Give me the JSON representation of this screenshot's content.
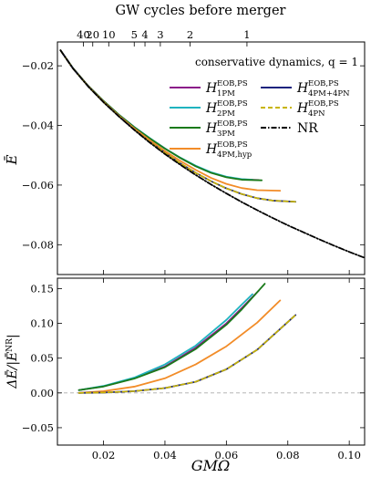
{
  "chart_data": [
    {
      "type": "line",
      "panel": "top",
      "top_axis_label": "GW cycles before merger",
      "top_ticks": [
        {
          "label": "40",
          "x": 0.01345
        },
        {
          "label": "20",
          "x": 0.0165
        },
        {
          "label": "10",
          "x": 0.0217
        },
        {
          "label": "5",
          "x": 0.03
        },
        {
          "label": "4",
          "x": 0.0335
        },
        {
          "label": "3",
          "x": 0.0385
        },
        {
          "label": "2",
          "x": 0.0482
        },
        {
          "label": "1",
          "x": 0.0667
        }
      ],
      "ylabel": "Ē",
      "xlim": [
        0.005,
        0.105
      ],
      "ylim": [
        -0.09,
        -0.012
      ],
      "yticks": [
        -0.02,
        -0.04,
        -0.06,
        -0.08
      ],
      "ytick_labels": [
        "−0.02",
        "−0.04",
        "−0.06",
        "−0.08"
      ],
      "legend_title": "conservative dynamics,  q = 1",
      "legend_position": "upper right",
      "series": [
        {
          "name": "H 1PM EOB,PS",
          "color": "#8b1a89",
          "style": "solid",
          "x": [
            0.006,
            0.01,
            0.015,
            0.02,
            0.025,
            0.03,
            0.035,
            0.04,
            0.045,
            0.05,
            0.055,
            0.06,
            0.065,
            0.0705
          ],
          "y": [
            -0.0148,
            -0.0207,
            -0.0267,
            -0.0318,
            -0.0364,
            -0.0405,
            -0.0443,
            -0.0477,
            -0.0509,
            -0.0536,
            -0.0558,
            -0.0573,
            -0.0581,
            -0.0583
          ]
        },
        {
          "name": "H 2PM EOB,PS",
          "color": "#1fb3bf",
          "style": "solid",
          "x": [
            0.006,
            0.01,
            0.015,
            0.02,
            0.025,
            0.03,
            0.035,
            0.04,
            0.045,
            0.05,
            0.055,
            0.06,
            0.065,
            0.0685
          ],
          "y": [
            -0.0148,
            -0.0207,
            -0.0267,
            -0.0318,
            -0.0364,
            -0.0405,
            -0.0442,
            -0.0477,
            -0.0508,
            -0.0535,
            -0.0557,
            -0.0572,
            -0.058,
            -0.0582
          ]
        },
        {
          "name": "H 3PM EOB,PS",
          "color": "#1a7a1a",
          "style": "solid",
          "x": [
            0.006,
            0.01,
            0.015,
            0.02,
            0.025,
            0.03,
            0.035,
            0.04,
            0.045,
            0.05,
            0.055,
            0.06,
            0.065,
            0.0715
          ],
          "y": [
            -0.0148,
            -0.0207,
            -0.0267,
            -0.0318,
            -0.0364,
            -0.0406,
            -0.0443,
            -0.0478,
            -0.0509,
            -0.0537,
            -0.0559,
            -0.0574,
            -0.0582,
            -0.0584
          ]
        },
        {
          "name": "H 4PM,hyp EOB,PS",
          "color": "#f28c28",
          "style": "solid",
          "x": [
            0.006,
            0.01,
            0.015,
            0.02,
            0.025,
            0.03,
            0.035,
            0.04,
            0.045,
            0.05,
            0.055,
            0.06,
            0.065,
            0.07,
            0.0775
          ],
          "y": [
            -0.0148,
            -0.0208,
            -0.0268,
            -0.032,
            -0.0367,
            -0.041,
            -0.0449,
            -0.0486,
            -0.0519,
            -0.0549,
            -0.0576,
            -0.0596,
            -0.061,
            -0.0617,
            -0.0619
          ]
        },
        {
          "name": "H 4PM+4PN EOB,PS",
          "color": "#1a237e",
          "style": "solid",
          "x": [
            0.006,
            0.01,
            0.015,
            0.02,
            0.025,
            0.03,
            0.035,
            0.04,
            0.045,
            0.05,
            0.055,
            0.06,
            0.065,
            0.07,
            0.075,
            0.0825
          ],
          "y": [
            -0.0148,
            -0.0208,
            -0.0269,
            -0.0322,
            -0.0369,
            -0.0414,
            -0.0455,
            -0.0492,
            -0.0527,
            -0.0559,
            -0.0587,
            -0.0611,
            -0.063,
            -0.0644,
            -0.0652,
            -0.0656
          ]
        },
        {
          "name": "H 4PN EOB,PS",
          "color": "#c8b400",
          "style": "dashed",
          "x": [
            0.006,
            0.01,
            0.015,
            0.02,
            0.025,
            0.03,
            0.035,
            0.04,
            0.045,
            0.05,
            0.055,
            0.06,
            0.065,
            0.07,
            0.075,
            0.0825
          ],
          "y": [
            -0.0148,
            -0.0208,
            -0.0269,
            -0.0322,
            -0.0369,
            -0.0414,
            -0.0455,
            -0.0492,
            -0.0527,
            -0.0559,
            -0.0587,
            -0.0611,
            -0.063,
            -0.0644,
            -0.0652,
            -0.0656
          ]
        },
        {
          "name": "NR",
          "color": "#000000",
          "style": "dashdot",
          "x": [
            0.006,
            0.01,
            0.015,
            0.02,
            0.025,
            0.03,
            0.035,
            0.04,
            0.045,
            0.05,
            0.055,
            0.06,
            0.065,
            0.07,
            0.075,
            0.08,
            0.085,
            0.09,
            0.095,
            0.1,
            0.105
          ],
          "y": [
            -0.0148,
            -0.0208,
            -0.0269,
            -0.0322,
            -0.037,
            -0.0415,
            -0.0457,
            -0.0496,
            -0.0532,
            -0.0566,
            -0.0598,
            -0.0628,
            -0.0657,
            -0.0684,
            -0.071,
            -0.0735,
            -0.0758,
            -0.0781,
            -0.0803,
            -0.0824,
            -0.0844
          ]
        }
      ]
    },
    {
      "type": "line",
      "panel": "bottom",
      "xlabel": "GMΩ",
      "ylabel": "ΔĒ/|Ē^NR|",
      "xlim": [
        0.005,
        0.105
      ],
      "ylim": [
        -0.075,
        0.165
      ],
      "xticks": [
        0.02,
        0.04,
        0.06,
        0.08,
        0.1
      ],
      "xtick_labels": [
        "0.02",
        "0.04",
        "0.06",
        "0.08",
        "0.10"
      ],
      "yticks": [
        -0.05,
        0.0,
        0.05,
        0.1,
        0.15
      ],
      "ytick_labels": [
        "−0.05",
        "0.00",
        "0.05",
        "0.10",
        "0.15"
      ],
      "zero_line": true,
      "series": [
        {
          "name": "H 1PM EOB,PS",
          "color": "#8b1a89",
          "style": "solid",
          "x": [
            0.012,
            0.02,
            0.03,
            0.04,
            0.05,
            0.06,
            0.065,
            0.0705
          ],
          "y": [
            0.004,
            0.0095,
            0.021,
            0.038,
            0.065,
            0.1,
            0.122,
            0.147
          ]
        },
        {
          "name": "H 2PM EOB,PS",
          "color": "#1fb3bf",
          "style": "solid",
          "x": [
            0.012,
            0.02,
            0.03,
            0.04,
            0.05,
            0.06,
            0.065,
            0.0685
          ],
          "y": [
            0.004,
            0.01,
            0.022,
            0.041,
            0.068,
            0.105,
            0.127,
            0.142
          ]
        },
        {
          "name": "H 3PM EOB,PS",
          "color": "#1a7a1a",
          "style": "solid",
          "x": [
            0.012,
            0.02,
            0.03,
            0.04,
            0.05,
            0.06,
            0.065,
            0.0725
          ],
          "y": [
            0.004,
            0.0092,
            0.0205,
            0.037,
            0.063,
            0.098,
            0.12,
            0.157
          ]
        },
        {
          "name": "H 4PM,hyp EOB,PS",
          "color": "#f28c28",
          "style": "solid",
          "x": [
            0.012,
            0.02,
            0.03,
            0.04,
            0.05,
            0.06,
            0.07,
            0.0775
          ],
          "y": [
            0.0,
            0.0025,
            0.009,
            0.021,
            0.041,
            0.067,
            0.101,
            0.133
          ]
        },
        {
          "name": "H 4PM+4PN EOB,PS",
          "color": "#1a237e",
          "style": "solid",
          "x": [
            0.012,
            0.02,
            0.03,
            0.04,
            0.05,
            0.06,
            0.07,
            0.0825
          ],
          "y": [
            0.0,
            0.0005,
            0.0025,
            0.007,
            0.016,
            0.034,
            0.062,
            0.112
          ]
        },
        {
          "name": "H 4PN EOB,PS",
          "color": "#c8b400",
          "style": "dashed",
          "x": [
            0.012,
            0.02,
            0.03,
            0.04,
            0.05,
            0.06,
            0.07,
            0.0825
          ],
          "y": [
            0.0,
            0.0005,
            0.0025,
            0.007,
            0.016,
            0.034,
            0.062,
            0.112
          ]
        }
      ]
    }
  ],
  "legend": [
    {
      "base": "H",
      "sup": "EOB,PS",
      "sub": "1PM",
      "color": "#8b1a89",
      "style": "solid"
    },
    {
      "base": "H",
      "sup": "EOB,PS",
      "sub": "2PM",
      "color": "#1fb3bf",
      "style": "solid"
    },
    {
      "base": "H",
      "sup": "EOB,PS",
      "sub": "3PM",
      "color": "#1a7a1a",
      "style": "solid"
    },
    {
      "base": "H",
      "sup": "EOB,PS",
      "sub": "4PM,hyp",
      "color": "#f28c28",
      "style": "solid"
    },
    {
      "base": "H",
      "sup": "EOB,PS",
      "sub": "4PM+4PN",
      "color": "#1a237e",
      "style": "solid"
    },
    {
      "base": "H",
      "sup": "EOB,PS",
      "sub": "4PN",
      "color": "#c8b400",
      "style": "dashed"
    },
    {
      "base": "NR",
      "sup": "",
      "sub": "",
      "color": "#000000",
      "style": "dashdot"
    }
  ],
  "labels": {
    "top_axis_label": "GW cycles before merger",
    "legend_title": "conservative dynamics,  q = 1",
    "ylabel_top": "Ē",
    "ylabel_bottom": "ΔĒ/|Ē",
    "ylabel_bottom_sup": "NR",
    "ylabel_bottom_tail": "|",
    "xlabel_bottom": "GMΩ"
  }
}
